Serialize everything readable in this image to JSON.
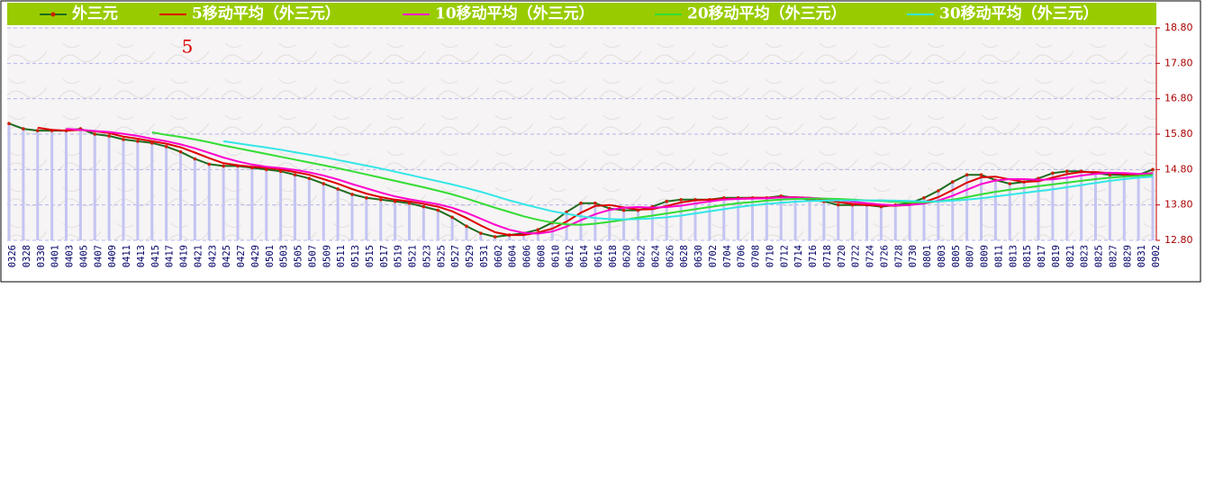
{
  "chart_data": {
    "type": "line",
    "annotation": "5",
    "categories": [
      "0326",
      "0328",
      "0330",
      "0401",
      "0403",
      "0405",
      "0407",
      "0409",
      "0411",
      "0413",
      "0415",
      "0417",
      "0419",
      "0421",
      "0423",
      "0425",
      "0427",
      "0429",
      "0501",
      "0503",
      "0505",
      "0507",
      "0509",
      "0511",
      "0513",
      "0515",
      "0517",
      "0519",
      "0521",
      "0523",
      "0525",
      "0527",
      "0529",
      "0531",
      "0602",
      "0604",
      "0606",
      "0608",
      "0610",
      "0612",
      "0614",
      "0616",
      "0618",
      "0620",
      "0622",
      "0624",
      "0626",
      "0628",
      "0630",
      "0702",
      "0704",
      "0706",
      "0708",
      "0710",
      "0712",
      "0714",
      "0716",
      "0718",
      "0720",
      "0722",
      "0724",
      "0726",
      "0728",
      "0730",
      "0801",
      "0803",
      "0805",
      "0807",
      "0809",
      "0811",
      "0813",
      "0815",
      "0817",
      "0819",
      "0821",
      "0823",
      "0825",
      "0827",
      "0829",
      "0831",
      "0902"
    ],
    "ylim": [
      12.8,
      18.8
    ],
    "yticks": [
      {
        "value": 12.8,
        "label": "12.80"
      },
      {
        "value": 13.8,
        "label": "13.80"
      },
      {
        "value": 14.8,
        "label": "14.80"
      },
      {
        "value": 15.8,
        "label": "15.80"
      },
      {
        "value": 16.8,
        "label": "16.80"
      },
      {
        "value": 17.8,
        "label": "17.80"
      },
      {
        "value": 18.8,
        "label": "18.80"
      }
    ],
    "grid": true,
    "series": [
      {
        "name": "外三元",
        "color": "#1f6b1f",
        "marker_color": "#cc2200",
        "bar_color": "#c4c4f2",
        "values": [
          16.1,
          15.95,
          15.9,
          15.9,
          15.9,
          15.95,
          15.8,
          15.75,
          15.65,
          15.6,
          15.55,
          15.45,
          15.3,
          15.1,
          14.95,
          14.9,
          14.9,
          14.85,
          14.8,
          14.75,
          14.65,
          14.55,
          14.4,
          14.25,
          14.1,
          14.0,
          13.95,
          13.9,
          13.85,
          13.75,
          13.65,
          13.45,
          13.2,
          13.0,
          12.9,
          12.95,
          13.0,
          13.1,
          13.3,
          13.6,
          13.85,
          13.85,
          13.7,
          13.65,
          13.65,
          13.75,
          13.9,
          13.95,
          13.95,
          13.95,
          14.0,
          14.0,
          14.0,
          14.0,
          14.05,
          14.0,
          13.95,
          13.9,
          13.8,
          13.8,
          13.8,
          13.75,
          13.8,
          13.85,
          14.0,
          14.2,
          14.45,
          14.65,
          14.65,
          14.5,
          14.4,
          14.45,
          14.55,
          14.7,
          14.75,
          14.75,
          14.7,
          14.65,
          14.65,
          14.65,
          14.8
        ]
      },
      {
        "name": "5移动平均（外三元）",
        "color": "#dd0000",
        "values": [
          null,
          null,
          15.98,
          15.92,
          15.9,
          15.92,
          15.88,
          15.83,
          15.73,
          15.67,
          15.6,
          15.53,
          15.43,
          15.28,
          15.12,
          14.98,
          14.92,
          14.88,
          14.85,
          14.8,
          14.73,
          14.65,
          14.53,
          14.4,
          14.25,
          14.12,
          14.02,
          13.95,
          13.9,
          13.83,
          13.75,
          13.62,
          13.43,
          13.22,
          13.03,
          12.95,
          12.95,
          13.02,
          13.13,
          13.33,
          13.58,
          13.77,
          13.8,
          13.73,
          13.67,
          13.68,
          13.77,
          13.87,
          13.93,
          13.95,
          13.97,
          13.98,
          14.0,
          14.0,
          14.02,
          14.02,
          14.0,
          13.95,
          13.88,
          13.83,
          13.8,
          13.78,
          13.78,
          13.8,
          13.88,
          14.02,
          14.22,
          14.43,
          14.58,
          14.6,
          14.52,
          14.45,
          14.47,
          14.57,
          14.67,
          14.73,
          14.73,
          14.7,
          14.67,
          14.65,
          14.7
        ]
      },
      {
        "name": "10移动平均（外三元）",
        "color": "#ff00cc",
        "values": [
          null,
          null,
          null,
          null,
          15.95,
          15.92,
          15.89,
          15.86,
          15.81,
          15.75,
          15.67,
          15.6,
          15.51,
          15.4,
          15.27,
          15.14,
          15.03,
          14.94,
          14.88,
          14.84,
          14.79,
          14.72,
          14.63,
          14.52,
          14.39,
          14.27,
          14.15,
          14.04,
          13.96,
          13.89,
          13.82,
          13.72,
          13.58,
          13.41,
          13.24,
          13.1,
          13.01,
          12.99,
          13.05,
          13.19,
          13.37,
          13.54,
          13.66,
          13.72,
          13.74,
          13.72,
          13.74,
          13.78,
          13.84,
          13.9,
          13.95,
          13.97,
          13.98,
          13.99,
          14.01,
          14.01,
          14.0,
          13.98,
          13.94,
          13.89,
          13.85,
          13.81,
          13.79,
          13.8,
          13.84,
          13.92,
          14.06,
          14.23,
          14.39,
          14.49,
          14.53,
          14.53,
          14.51,
          14.52,
          14.57,
          14.63,
          14.68,
          14.71,
          14.7,
          14.68,
          14.69
        ]
      },
      {
        "name": "20移动平均（外三元）",
        "color": "#33dd33",
        "values": [
          null,
          null,
          null,
          null,
          null,
          null,
          null,
          null,
          null,
          null,
          15.85,
          15.78,
          15.72,
          15.65,
          15.57,
          15.48,
          15.4,
          15.32,
          15.24,
          15.16,
          15.08,
          15.0,
          14.92,
          14.84,
          14.75,
          14.66,
          14.57,
          14.48,
          14.39,
          14.3,
          14.2,
          14.1,
          13.98,
          13.85,
          13.72,
          13.6,
          13.48,
          13.38,
          13.3,
          13.25,
          13.24,
          13.27,
          13.32,
          13.38,
          13.44,
          13.5,
          13.56,
          13.62,
          13.68,
          13.74,
          13.8,
          13.85,
          13.88,
          13.92,
          13.95,
          13.97,
          13.98,
          13.98,
          13.97,
          13.95,
          13.93,
          13.91,
          13.89,
          13.87,
          13.87,
          13.9,
          13.95,
          14.02,
          14.1,
          14.17,
          14.23,
          14.28,
          14.33,
          14.38,
          14.43,
          14.48,
          14.53,
          14.57,
          14.6,
          14.62,
          14.65
        ]
      },
      {
        "name": "30移动平均（外三元）",
        "color": "#33e6e6",
        "values": [
          null,
          null,
          null,
          null,
          null,
          null,
          null,
          null,
          null,
          null,
          null,
          null,
          null,
          null,
          null,
          15.6,
          15.54,
          15.48,
          15.42,
          15.36,
          15.29,
          15.22,
          15.15,
          15.07,
          14.99,
          14.91,
          14.83,
          14.74,
          14.65,
          14.56,
          14.47,
          14.38,
          14.28,
          14.17,
          14.05,
          13.93,
          13.82,
          13.72,
          13.62,
          13.55,
          13.48,
          13.43,
          13.4,
          13.39,
          13.4,
          13.42,
          13.45,
          13.5,
          13.56,
          13.62,
          13.68,
          13.74,
          13.79,
          13.83,
          13.86,
          13.89,
          13.91,
          13.92,
          13.93,
          13.93,
          13.93,
          13.93,
          13.92,
          13.91,
          13.9,
          13.9,
          13.92,
          13.95,
          13.99,
          14.04,
          14.09,
          14.14,
          14.19,
          14.24,
          14.3,
          14.36,
          14.42,
          14.48,
          14.53,
          14.57,
          14.6
        ]
      }
    ]
  }
}
